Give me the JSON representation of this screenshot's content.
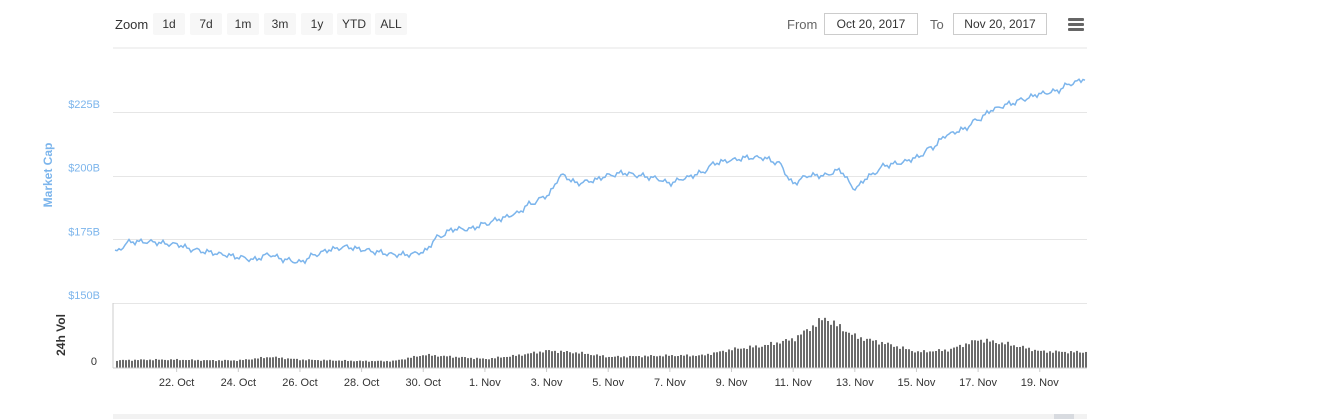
{
  "toolbar": {
    "zoom_label": "Zoom",
    "zoom_buttons": [
      "1d",
      "7d",
      "1m",
      "3m",
      "1y",
      "YTD",
      "ALL"
    ],
    "from_label": "From",
    "from_value": "Oct 20, 2017",
    "to_label": "To",
    "to_value": "Nov 20, 2017",
    "menu_icon": "hamburger-menu-icon"
  },
  "colors": {
    "line": "#7cb5ec",
    "volume": "#6b6b6b",
    "grid": "#e6e6e6"
  },
  "chart_data": [
    {
      "type": "line",
      "ylabel": "Market Cap",
      "yticks": [
        "$150B",
        "$175B",
        "$200B",
        "$225B"
      ],
      "ytick_values": [
        150,
        175,
        200,
        225
      ],
      "ylim": [
        150,
        250
      ],
      "x_range": [
        "2017-10-20",
        "2017-11-20"
      ],
      "x": [
        "2017-10-20",
        "2017-10-20T12",
        "2017-10-21",
        "2017-10-22",
        "2017-10-22T12",
        "2017-10-23",
        "2017-10-23T12",
        "2017-10-24",
        "2017-10-24T12",
        "2017-10-25",
        "2017-10-25T12",
        "2017-10-26",
        "2017-10-26T12",
        "2017-10-27",
        "2017-10-27T12",
        "2017-10-28",
        "2017-10-28T12",
        "2017-10-29",
        "2017-10-29T12",
        "2017-10-30",
        "2017-10-30T12",
        "2017-10-31",
        "2017-10-31T12",
        "2017-11-01",
        "2017-11-01T12",
        "2017-11-02",
        "2017-11-02T12",
        "2017-11-03",
        "2017-11-03T12",
        "2017-11-04",
        "2017-11-04T12",
        "2017-11-05",
        "2017-11-05T12",
        "2017-11-06",
        "2017-11-06T12",
        "2017-11-07",
        "2017-11-07T12",
        "2017-11-08",
        "2017-11-08T12",
        "2017-11-09",
        "2017-11-09T12",
        "2017-11-10",
        "2017-11-10T12",
        "2017-11-11",
        "2017-11-11T12",
        "2017-11-12",
        "2017-11-12T12",
        "2017-11-13",
        "2017-11-13T12",
        "2017-11-14",
        "2017-11-14T12",
        "2017-11-15",
        "2017-11-15T12",
        "2017-11-16",
        "2017-11-16T12",
        "2017-11-17",
        "2017-11-17T12",
        "2017-11-18",
        "2017-11-18T12",
        "2017-11-19",
        "2017-11-19T12",
        "2017-11-20",
        "2017-11-20T12"
      ],
      "series": [
        {
          "values": [
            170,
            174,
            174,
            173,
            171,
            170,
            169,
            168,
            167,
            169,
            167,
            166,
            169,
            171,
            172,
            171,
            170,
            169,
            169,
            170,
            176,
            179,
            179,
            181,
            183,
            185,
            189,
            192,
            200,
            197,
            198,
            200,
            201,
            200,
            199,
            197,
            199,
            201,
            205,
            206,
            207,
            207,
            205,
            197,
            200,
            200,
            202,
            195,
            200,
            204,
            205,
            207,
            211,
            216,
            218,
            222,
            226,
            228,
            230,
            232,
            233,
            236,
            238
          ]
        }
      ]
    },
    {
      "type": "bar",
      "ylabel": "24h Vol",
      "yticks": [
        "0"
      ],
      "ytick_values": [
        0
      ],
      "x_range": [
        "2017-10-20",
        "2017-11-20"
      ],
      "x": [
        "2017-10-20",
        "2017-10-21",
        "2017-10-22",
        "2017-10-23",
        "2017-10-24",
        "2017-10-25",
        "2017-10-26",
        "2017-10-27",
        "2017-10-28",
        "2017-10-29",
        "2017-10-30",
        "2017-10-31",
        "2017-11-01",
        "2017-11-02",
        "2017-11-03",
        "2017-11-04",
        "2017-11-05",
        "2017-11-06",
        "2017-11-07",
        "2017-11-08",
        "2017-11-09",
        "2017-11-10",
        "2017-11-11",
        "2017-11-12",
        "2017-11-13",
        "2017-11-14",
        "2017-11-15",
        "2017-11-16",
        "2017-11-17",
        "2017-11-18",
        "2017-11-19",
        "2017-11-20"
      ],
      "values": [
        1.1,
        1.2,
        1.2,
        1.1,
        1.1,
        1.6,
        1.2,
        1.1,
        1.0,
        1.0,
        1.9,
        1.6,
        1.3,
        1.8,
        2.5,
        2.2,
        1.6,
        1.7,
        1.8,
        1.8,
        2.7,
        3.2,
        4.2,
        7.2,
        4.5,
        3.5,
        2.3,
        2.6,
        4.1,
        3.4,
        2.4,
        2.3
      ]
    }
  ],
  "x_axis": {
    "tick_labels": [
      "22. Oct",
      "24. Oct",
      "26. Oct",
      "28. Oct",
      "30. Oct",
      "1. Nov",
      "3. Nov",
      "5. Nov",
      "7. Nov",
      "9. Nov",
      "11. Nov",
      "13. Nov",
      "15. Nov",
      "17. Nov",
      "19. Nov"
    ],
    "tick_dates": [
      "2017-10-22",
      "2017-10-24",
      "2017-10-26",
      "2017-10-28",
      "2017-10-30",
      "2017-11-01",
      "2017-11-03",
      "2017-11-05",
      "2017-11-07",
      "2017-11-09",
      "2017-11-11",
      "2017-11-13",
      "2017-11-15",
      "2017-11-17",
      "2017-11-19"
    ]
  }
}
